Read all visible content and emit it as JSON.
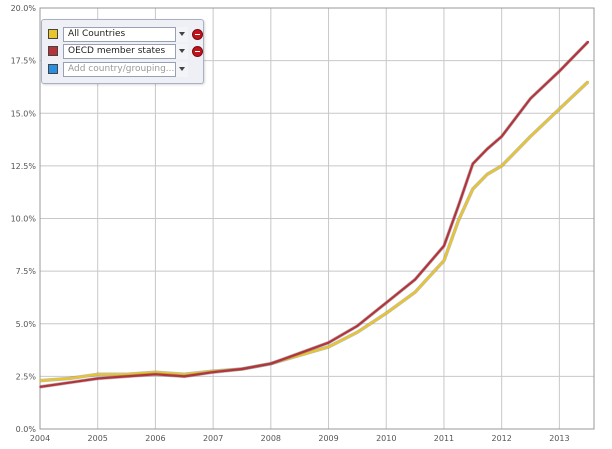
{
  "chart_data": {
    "type": "line",
    "ylim": [
      0,
      20
    ],
    "xlim": [
      2004,
      2013.6
    ],
    "y_ticks": [
      "0.0%",
      "2.5%",
      "5.0%",
      "7.5%",
      "10.0%",
      "12.5%",
      "15.0%",
      "17.5%",
      "20.0%"
    ],
    "x_ticks": [
      "2004",
      "2005",
      "2006",
      "2007",
      "2008",
      "2009",
      "2010",
      "2011",
      "2012",
      "2013"
    ],
    "grid": true,
    "legend_position": "top-left",
    "series": [
      {
        "name": "All Countries",
        "color": "#e8c52d",
        "x": [
          2004.0,
          2004.5,
          2005.0,
          2005.5,
          2006.0,
          2006.5,
          2007.0,
          2007.5,
          2008.0,
          2008.5,
          2009.0,
          2009.5,
          2010.0,
          2010.5,
          2011.0,
          2011.25,
          2011.5,
          2011.75,
          2012.0,
          2012.5,
          2013.0,
          2013.5
        ],
        "values": [
          2.3,
          2.4,
          2.6,
          2.6,
          2.7,
          2.6,
          2.75,
          2.85,
          3.1,
          3.5,
          3.9,
          4.6,
          5.5,
          6.5,
          8.0,
          9.9,
          11.4,
          12.1,
          12.5,
          13.9,
          15.2,
          16.5
        ]
      },
      {
        "name": "OECD member states",
        "color": "#b5333b",
        "x": [
          2004.0,
          2004.5,
          2005.0,
          2005.5,
          2006.0,
          2006.5,
          2007.0,
          2007.5,
          2008.0,
          2008.5,
          2009.0,
          2009.5,
          2010.0,
          2010.5,
          2011.0,
          2011.25,
          2011.5,
          2011.75,
          2012.0,
          2012.5,
          2013.0,
          2013.5
        ],
        "values": [
          2.0,
          2.2,
          2.4,
          2.5,
          2.6,
          2.5,
          2.7,
          2.85,
          3.1,
          3.6,
          4.1,
          4.9,
          6.0,
          7.1,
          8.7,
          10.6,
          12.6,
          13.3,
          13.9,
          15.7,
          17.0,
          18.4
        ]
      }
    ]
  },
  "legend": {
    "rows": [
      {
        "label": "All Countries",
        "color": "#e8c52d"
      },
      {
        "label": "OECD member states",
        "color": "#b5333b"
      }
    ],
    "add": {
      "placeholder": "Add country/grouping...",
      "color": "#2a8fe0"
    }
  }
}
